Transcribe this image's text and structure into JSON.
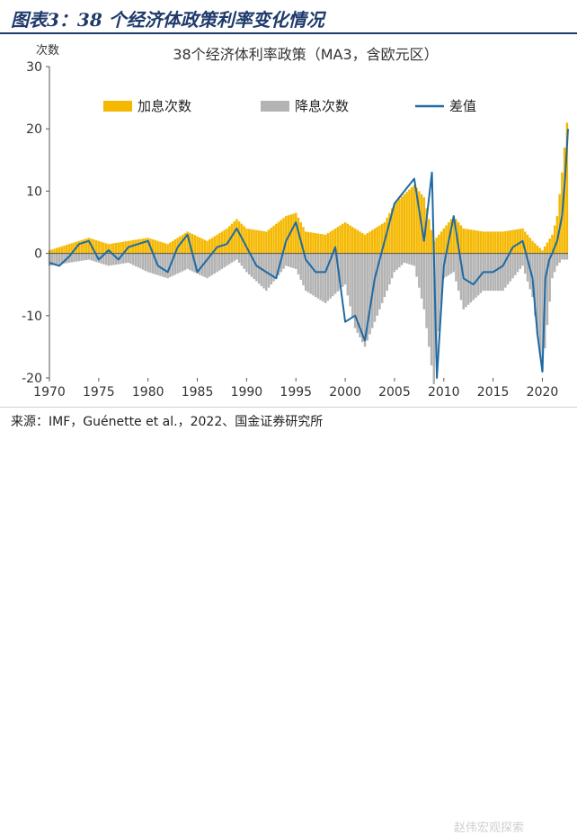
{
  "figure": {
    "title": "图表3：38 个经济体政策利率变化情况",
    "source": "来源：IMF，Guénette et al.，2022、国金证券研究所",
    "watermark": "赵伟宏观探索"
  },
  "chart_data": {
    "type": "bar",
    "title": "38个经济体利率政策（MA3，含欧元区）",
    "ylabel": "次数",
    "xlabel": "",
    "ylim": [
      -20,
      30
    ],
    "yticks": [
      -20,
      -10,
      0,
      10,
      20,
      30
    ],
    "xlim": [
      1970,
      2022.6
    ],
    "xticks": [
      1970,
      1975,
      1980,
      1985,
      1990,
      1995,
      2000,
      2005,
      2010,
      2015,
      2020
    ],
    "legend_position": "top",
    "grid": false,
    "colors": {
      "hikes": "#f5b800",
      "cuts": "#b3b3b3",
      "net": "#1f6aa5"
    },
    "series": [
      {
        "name": "加息次数",
        "kind": "bar-positive",
        "x": [
          1970,
          1972,
          1974,
          1976,
          1978,
          1980,
          1982,
          1984,
          1986,
          1988,
          1989,
          1990,
          1992,
          1994,
          1995,
          1996,
          1998,
          2000,
          2001,
          2002,
          2004,
          2005,
          2006,
          2007,
          2008,
          2009,
          2010,
          2011,
          2012,
          2014,
          2016,
          2018,
          2019,
          2020,
          2021,
          2021.5,
          2022,
          2022.5
        ],
        "values": [
          0.5,
          1.5,
          2.5,
          1.5,
          2,
          2.5,
          1.5,
          3.5,
          2,
          4,
          5.5,
          4,
          3.5,
          6,
          6.5,
          3.5,
          3,
          5,
          4,
          3,
          5,
          8,
          9.5,
          11,
          9,
          2,
          4,
          6,
          4,
          3.5,
          3.5,
          4,
          2,
          0.5,
          3,
          6,
          13,
          21
        ]
      },
      {
        "name": "降息次数",
        "kind": "bar-negative",
        "x": [
          1970,
          1972,
          1974,
          1976,
          1978,
          1980,
          1982,
          1984,
          1986,
          1988,
          1989,
          1990,
          1992,
          1994,
          1995,
          1996,
          1998,
          2000,
          2001,
          2002,
          2004,
          2005,
          2006,
          2007,
          2008,
          2009,
          2010,
          2011,
          2012,
          2014,
          2016,
          2018,
          2019,
          2020,
          2021,
          2021.5,
          2022,
          2022.5
        ],
        "values": [
          -2,
          -1.5,
          -1,
          -2,
          -1.5,
          -3,
          -4,
          -2.5,
          -4,
          -2,
          -1,
          -3,
          -6,
          -2,
          -2.5,
          -6,
          -8,
          -5,
          -12,
          -15,
          -7,
          -3,
          -1.5,
          -2,
          -9,
          -21,
          -4,
          -3,
          -9,
          -6,
          -6,
          -2,
          -7,
          -19,
          -4,
          -2,
          -1,
          -1
        ]
      },
      {
        "name": "差值",
        "kind": "line",
        "x": [
          1970,
          1971,
          1972,
          1973,
          1974,
          1975,
          1976,
          1977,
          1978,
          1979,
          1980,
          1981,
          1982,
          1983,
          1984,
          1985,
          1986,
          1987,
          1988,
          1989,
          1990,
          1991,
          1992,
          1993,
          1994,
          1995,
          1996,
          1997,
          1998,
          1999,
          2000,
          2001,
          2002,
          2003,
          2004,
          2005,
          2006,
          2007,
          2008,
          2008.8,
          2009.3,
          2010,
          2011,
          2012,
          2013,
          2014,
          2015,
          2016,
          2017,
          2018,
          2019,
          2019.5,
          2020,
          2020.3,
          2020.7,
          2021,
          2021.5,
          2022,
          2022.3,
          2022.6
        ],
        "values": [
          -1.5,
          -2,
          -0.5,
          1.5,
          2,
          -1,
          0.5,
          -1,
          1,
          1.5,
          2,
          -2,
          -3,
          1,
          3,
          -3,
          -1,
          1,
          1.5,
          4,
          1,
          -2,
          -3,
          -4,
          2,
          5,
          -1,
          -3,
          -3,
          1,
          -11,
          -10,
          -14,
          -4,
          2,
          8,
          10,
          12,
          2,
          13,
          -20,
          -2,
          6,
          -4,
          -5,
          -3,
          -3,
          -2,
          1,
          2,
          -4,
          -13,
          -19,
          -4,
          -1,
          0,
          2,
          6,
          12,
          20
        ]
      }
    ]
  }
}
